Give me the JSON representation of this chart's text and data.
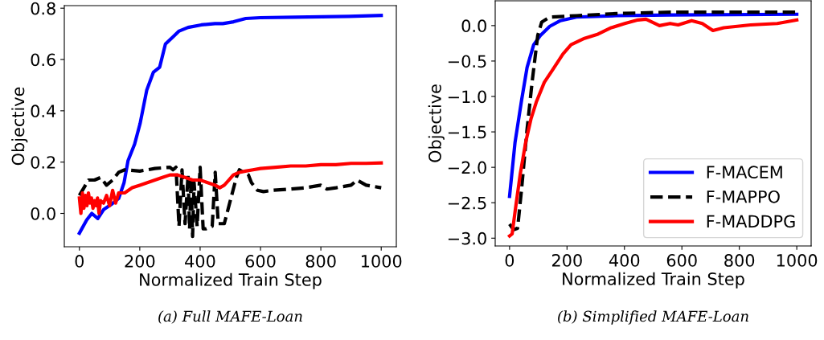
{
  "chart_data": [
    {
      "type": "line",
      "xlabel": "Normalized Train Step",
      "ylabel": "Objective",
      "xlim": [
        -50,
        1050
      ],
      "ylim": [
        -0.13,
        0.81
      ],
      "xticks": [
        0,
        200,
        400,
        600,
        800,
        1000
      ],
      "yticks": [
        {
          "value": 0.0,
          "label": "0.0"
        },
        {
          "value": 0.2,
          "label": "0.2"
        },
        {
          "value": 0.4,
          "label": "0.4"
        },
        {
          "value": 0.6,
          "label": "0.6"
        },
        {
          "value": 0.8,
          "label": "0.8"
        }
      ],
      "grid": false,
      "legend": false,
      "annotations": [
        "(a) Full MAFE-Loan"
      ],
      "series": [
        {
          "color": "#0000ff",
          "line_style": "solid",
          "x": [
            0,
            24,
            41,
            61,
            81,
            108,
            130,
            148,
            161,
            183,
            201,
            223,
            245,
            266,
            285,
            307,
            329,
            360,
            404,
            449,
            475,
            511,
            551,
            599,
            715,
            892,
            1000
          ],
          "values": [
            -0.077,
            -0.026,
            0,
            -0.02,
            0.016,
            0.037,
            0.058,
            0.12,
            0.205,
            0.27,
            0.35,
            0.48,
            0.55,
            0.57,
            0.66,
            0.685,
            0.71,
            0.725,
            0.735,
            0.74,
            0.74,
            0.747,
            0.76,
            0.763,
            0.765,
            0.768,
            0.772
          ]
        },
        {
          "color": "#000000",
          "line_style": "dashed",
          "x": [
            0,
            15,
            30,
            50,
            70,
            90,
            110,
            130,
            150,
            200,
            250,
            300,
            310,
            320,
            330,
            340,
            350,
            360,
            365,
            370,
            375,
            380,
            390,
            400,
            410,
            420,
            440,
            450,
            460,
            480,
            500,
            520,
            530,
            560,
            570,
            590,
            610,
            640,
            700,
            750,
            800,
            820,
            850,
            900,
            920,
            950,
            1000
          ],
          "values": [
            0.07,
            0.1,
            0.13,
            0.13,
            0.14,
            0.11,
            0.13,
            0.16,
            0.17,
            0.165,
            0.175,
            0.18,
            0.17,
            0.18,
            -0.05,
            0.17,
            -0.04,
            0.15,
            -0.06,
            0.14,
            -0.09,
            0.12,
            -0.05,
            0.18,
            -0.06,
            -0.06,
            -0.05,
            0.16,
            -0.04,
            -0.04,
            0.05,
            0.14,
            0.17,
            0.15,
            0.12,
            0.09,
            0.085,
            0.09,
            0.095,
            0.1,
            0.11,
            0.095,
            0.1,
            0.11,
            0.13,
            0.11,
            0.1
          ]
        },
        {
          "color": "#ff0000",
          "line_style": "solid",
          "x": [
            0,
            5,
            10,
            15,
            20,
            25,
            30,
            35,
            40,
            45,
            50,
            55,
            60,
            65,
            70,
            80,
            90,
            100,
            110,
            120,
            130,
            150,
            175,
            200,
            225,
            250,
            275,
            300,
            325,
            350,
            375,
            400,
            425,
            450,
            465,
            480,
            495,
            510,
            530,
            550,
            575,
            600,
            650,
            700,
            750,
            800,
            850,
            900,
            950,
            1000
          ],
          "values": [
            0.06,
            0.0,
            0.08,
            0.02,
            0.07,
            0.03,
            0.08,
            0.04,
            0.06,
            0.02,
            0.05,
            0.03,
            0.06,
            0.0,
            0.05,
            0.04,
            0.07,
            0.03,
            0.09,
            0.04,
            0.08,
            0.08,
            0.1,
            0.11,
            0.12,
            0.13,
            0.14,
            0.15,
            0.15,
            0.14,
            0.13,
            0.13,
            0.12,
            0.11,
            0.1,
            0.11,
            0.13,
            0.15,
            0.16,
            0.165,
            0.17,
            0.175,
            0.18,
            0.185,
            0.185,
            0.19,
            0.19,
            0.195,
            0.195,
            0.197
          ]
        }
      ]
    },
    {
      "type": "line",
      "xlabel": "Normalized Train Step",
      "ylabel": "Objective",
      "xlim": [
        -50,
        1050
      ],
      "ylim": [
        -3.11,
        0.35
      ],
      "xticks": [
        0,
        200,
        400,
        600,
        800,
        1000
      ],
      "yticks": [
        {
          "value": -3.0,
          "label": "−3.0"
        },
        {
          "value": -2.5,
          "label": "−2.5"
        },
        {
          "value": -2.0,
          "label": "−2.0"
        },
        {
          "value": -1.5,
          "label": "−1.5"
        },
        {
          "value": -1.0,
          "label": "−1.0"
        },
        {
          "value": -0.5,
          "label": "−0.5"
        },
        {
          "value": 0.0,
          "label": "0.0"
        }
      ],
      "grid": false,
      "legend": "lower right",
      "annotations": [
        "(b) Simplified MAFE-Loan"
      ],
      "series": [
        {
          "name": "F-MACEM",
          "color": "#0000ff",
          "line_style": "solid",
          "x": [
            0,
            19,
            42,
            61,
            84,
            107,
            140,
            177,
            233,
            373,
            559,
            1000
          ],
          "values": [
            -2.41,
            -1.65,
            -1.05,
            -0.59,
            -0.27,
            -0.14,
            -0.01,
            0.07,
            0.12,
            0.14,
            0.15,
            0.16
          ]
        },
        {
          "name": "F-MAPPO",
          "color": "#000000",
          "line_style": "dashed",
          "x": [
            0,
            14,
            28,
            42,
            61,
            79,
            98,
            112,
            140,
            233,
            373,
            559,
            1000
          ],
          "values": [
            -2.8,
            -2.88,
            -2.86,
            -2.3,
            -1.46,
            -0.78,
            -0.14,
            0.05,
            0.12,
            0.14,
            0.17,
            0.19,
            0.19
          ]
        },
        {
          "name": "F-MADDPG",
          "color": "#ff0000",
          "line_style": "solid",
          "x": [
            0,
            9,
            19,
            37,
            56,
            75,
            93,
            121,
            149,
            186,
            214,
            261,
            308,
            354,
            401,
            447,
            475,
            522,
            559,
            587,
            634,
            671,
            708,
            746,
            839,
            932,
            1000
          ],
          "values": [
            -2.97,
            -2.94,
            -2.63,
            -2.1,
            -1.65,
            -1.31,
            -1.08,
            -0.8,
            -0.63,
            -0.4,
            -0.27,
            -0.18,
            -0.12,
            -0.03,
            0.03,
            0.08,
            0.09,
            0.0,
            0.03,
            0.01,
            0.07,
            0.03,
            -0.07,
            -0.03,
            0.01,
            0.03,
            0.08
          ]
        }
      ]
    }
  ]
}
